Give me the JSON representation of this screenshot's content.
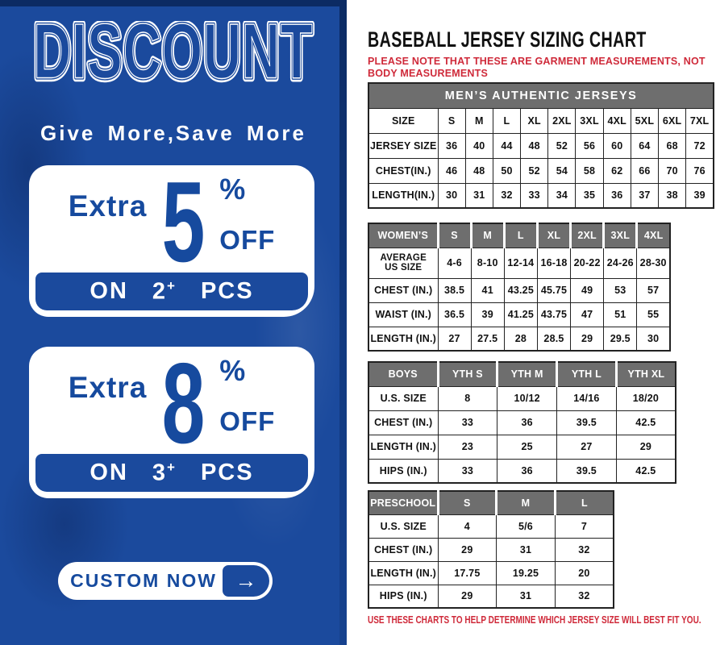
{
  "colors": {
    "panel_blue": "#1b4a9d",
    "text_blue": "#164a9e",
    "dark_navy": "#0c2b63",
    "header_gray": "#6e6e6e",
    "note_red": "#cf2a3a"
  },
  "left_panel": {
    "title": "DISCOUNT",
    "tagline": "Give More,Save More",
    "offers": [
      {
        "extra": "Extra",
        "percent": "5",
        "percent_sign": "%",
        "off": "OFF",
        "on": "ON",
        "qty": "2",
        "plus": "+",
        "pcs": "PCS"
      },
      {
        "extra": "Extra",
        "percent": "8",
        "percent_sign": "%",
        "off": "OFF",
        "on": "ON",
        "qty": "3",
        "plus": "+",
        "pcs": "PCS"
      }
    ],
    "custom_button": {
      "label": "CUSTOM NOW",
      "arrow": "→"
    }
  },
  "sizing": {
    "title": "BASEBALL JERSEY SIZING CHART",
    "note": "PLEASE NOTE THAT THESE ARE GARMENT MEASUREMENTS, NOT BODY MEASUREMENTS",
    "footer": "USE THESE CHARTS TO HELP DETERMINE WHICH JERSEY SIZE WILL BEST FIT YOU.",
    "tables": {
      "mens": {
        "title": "MEN’S AUTHENTIC JERSEYS",
        "gray_header": false,
        "header": [
          "SIZE",
          "S",
          "M",
          "L",
          "XL",
          "2XL",
          "3XL",
          "4XL",
          "5XL",
          "6XL",
          "7XL"
        ],
        "rows": [
          [
            "JERSEY SIZE",
            "36",
            "40",
            "44",
            "48",
            "52",
            "56",
            "60",
            "64",
            "68",
            "72"
          ],
          [
            "CHEST(IN.)",
            "46",
            "48",
            "50",
            "52",
            "54",
            "58",
            "62",
            "66",
            "70",
            "76"
          ],
          [
            "LENGTH(IN.)",
            "30",
            "31",
            "32",
            "33",
            "34",
            "35",
            "36",
            "37",
            "38",
            "39"
          ]
        ]
      },
      "womens": {
        "gray_header": true,
        "header": [
          "WOMEN’S",
          "S",
          "M",
          "L",
          "XL",
          "2XL",
          "3XL",
          "4XL"
        ],
        "rows": [
          [
            "AVERAGE\nUS SIZE",
            "4-6",
            "8-10",
            "12-14",
            "16-18",
            "20-22",
            "24-26",
            "28-30"
          ],
          [
            "CHEST (IN.)",
            "38.5",
            "41",
            "43.25",
            "45.75",
            "49",
            "53",
            "57"
          ],
          [
            "WAIST (IN.)",
            "36.5",
            "39",
            "41.25",
            "43.75",
            "47",
            "51",
            "55"
          ],
          [
            "LENGTH (IN.)",
            "27",
            "27.5",
            "28",
            "28.5",
            "29",
            "29.5",
            "30"
          ]
        ]
      },
      "boys": {
        "gray_header": true,
        "header": [
          "BOYS",
          "YTH S",
          "YTH M",
          "YTH L",
          "YTH XL"
        ],
        "rows": [
          [
            "U.S. SIZE",
            "8",
            "10/12",
            "14/16",
            "18/20"
          ],
          [
            "CHEST (IN.)",
            "33",
            "36",
            "39.5",
            "42.5"
          ],
          [
            "LENGTH (IN.)",
            "23",
            "25",
            "27",
            "29"
          ],
          [
            "HIPS (IN.)",
            "33",
            "36",
            "39.5",
            "42.5"
          ]
        ]
      },
      "preschool": {
        "gray_header": true,
        "header": [
          "PRESCHOOL",
          "S",
          "M",
          "L"
        ],
        "rows": [
          [
            "U.S. SIZE",
            "4",
            "5/6",
            "7"
          ],
          [
            "CHEST (IN.)",
            "29",
            "31",
            "32"
          ],
          [
            "LENGTH (IN.)",
            "17.75",
            "19.25",
            "20"
          ],
          [
            "HIPS (IN.)",
            "29",
            "31",
            "32"
          ]
        ]
      }
    }
  }
}
